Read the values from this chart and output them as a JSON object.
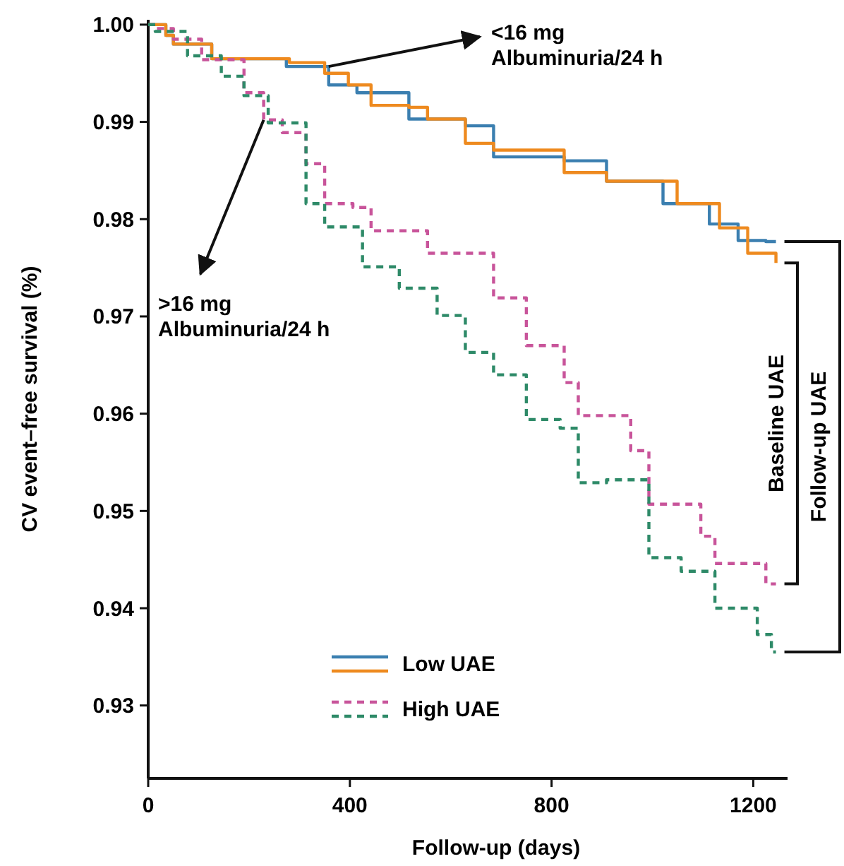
{
  "chart_data": {
    "type": "step",
    "xlabel": "Follow-up (days)",
    "ylabel": "CV event–free survival (%)",
    "xlim": [
      0,
      1268
    ],
    "ylim": [
      0.9225,
      1.0005
    ],
    "xticks": [
      0,
      400,
      800,
      1200
    ],
    "yticks": [
      {
        "value": 0.93,
        "label": "0.93"
      },
      {
        "value": 0.94,
        "label": "0.94"
      },
      {
        "value": 0.95,
        "label": "0.95"
      },
      {
        "value": 0.96,
        "label": "0.96"
      },
      {
        "value": 0.97,
        "label": "0.97"
      },
      {
        "value": 0.98,
        "label": "0.98"
      },
      {
        "value": 0.99,
        "label": "0.99"
      },
      {
        "value": 1.0,
        "label": "1.00"
      }
    ],
    "grid": false,
    "legend": "bottom",
    "series": [
      {
        "name": "Low UAE",
        "color": "#3b7fb0",
        "line_style": "solid",
        "x": [
          0,
          35,
          50,
          126,
          190,
          274,
          358,
          414,
          517,
          629,
          685,
          825,
          909,
          1021,
          1113,
          1170,
          1225,
          1245
        ],
        "values": [
          1.0,
          0.9989,
          0.998,
          0.9965,
          0.9965,
          0.9957,
          0.9938,
          0.993,
          0.9903,
          0.9896,
          0.9864,
          0.986,
          0.9839,
          0.9816,
          0.9795,
          0.9778,
          0.9777,
          0.9777
        ]
      },
      {
        "color": "#ee8a1f",
        "line_style": "solid",
        "x": [
          0,
          35,
          50,
          126,
          190,
          280,
          350,
          397,
          442,
          517,
          554,
          629,
          685,
          825,
          909,
          1049,
          1133,
          1189,
          1245
        ],
        "values": [
          1.0,
          0.9989,
          0.998,
          0.9965,
          0.9965,
          0.9961,
          0.995,
          0.9938,
          0.9917,
          0.9915,
          0.9903,
          0.9878,
          0.9871,
          0.9848,
          0.9839,
          0.9816,
          0.9791,
          0.9765,
          0.9755
        ]
      },
      {
        "name": "High UAE",
        "color": "#c8549a",
        "line_style": "dashed",
        "x": [
          0,
          14,
          50,
          106,
          190,
          229,
          266,
          313,
          350,
          406,
          442,
          554,
          685,
          750,
          825,
          853,
          957,
          993,
          1096,
          1124,
          1217,
          1225,
          1245
        ],
        "values": [
          1.0,
          0.9996,
          0.9985,
          0.9964,
          0.993,
          0.9902,
          0.9889,
          0.9857,
          0.9816,
          0.9812,
          0.9788,
          0.9765,
          0.9719,
          0.967,
          0.9632,
          0.9598,
          0.9562,
          0.9507,
          0.9474,
          0.9446,
          0.9446,
          0.9425,
          0.9425
        ]
      },
      {
        "color": "#2e8a68",
        "line_style": "dashed",
        "x": [
          0,
          14,
          78,
          145,
          190,
          238,
          313,
          350,
          425,
          498,
          573,
          629,
          685,
          750,
          817,
          853,
          909,
          993,
          1057,
          1124,
          1208,
          1236,
          1245
        ],
        "values": [
          1.0,
          0.9993,
          0.9968,
          0.9947,
          0.9927,
          0.9899,
          0.9816,
          0.9792,
          0.9751,
          0.9729,
          0.9701,
          0.9663,
          0.964,
          0.9594,
          0.9585,
          0.9529,
          0.9532,
          0.9452,
          0.9438,
          0.94,
          0.9373,
          0.9355,
          0.9355
        ]
      }
    ],
    "annotations": [
      {
        "text": "<16 mg\nAlbuminuria/24 h",
        "x": 358,
        "y": 0.9957
      },
      {
        "text": ">16 mg\nAlbuminuria/24 h",
        "x": 229,
        "y": 0.9902
      },
      "Baseline UAE",
      "Follow-up UAE"
    ]
  }
}
